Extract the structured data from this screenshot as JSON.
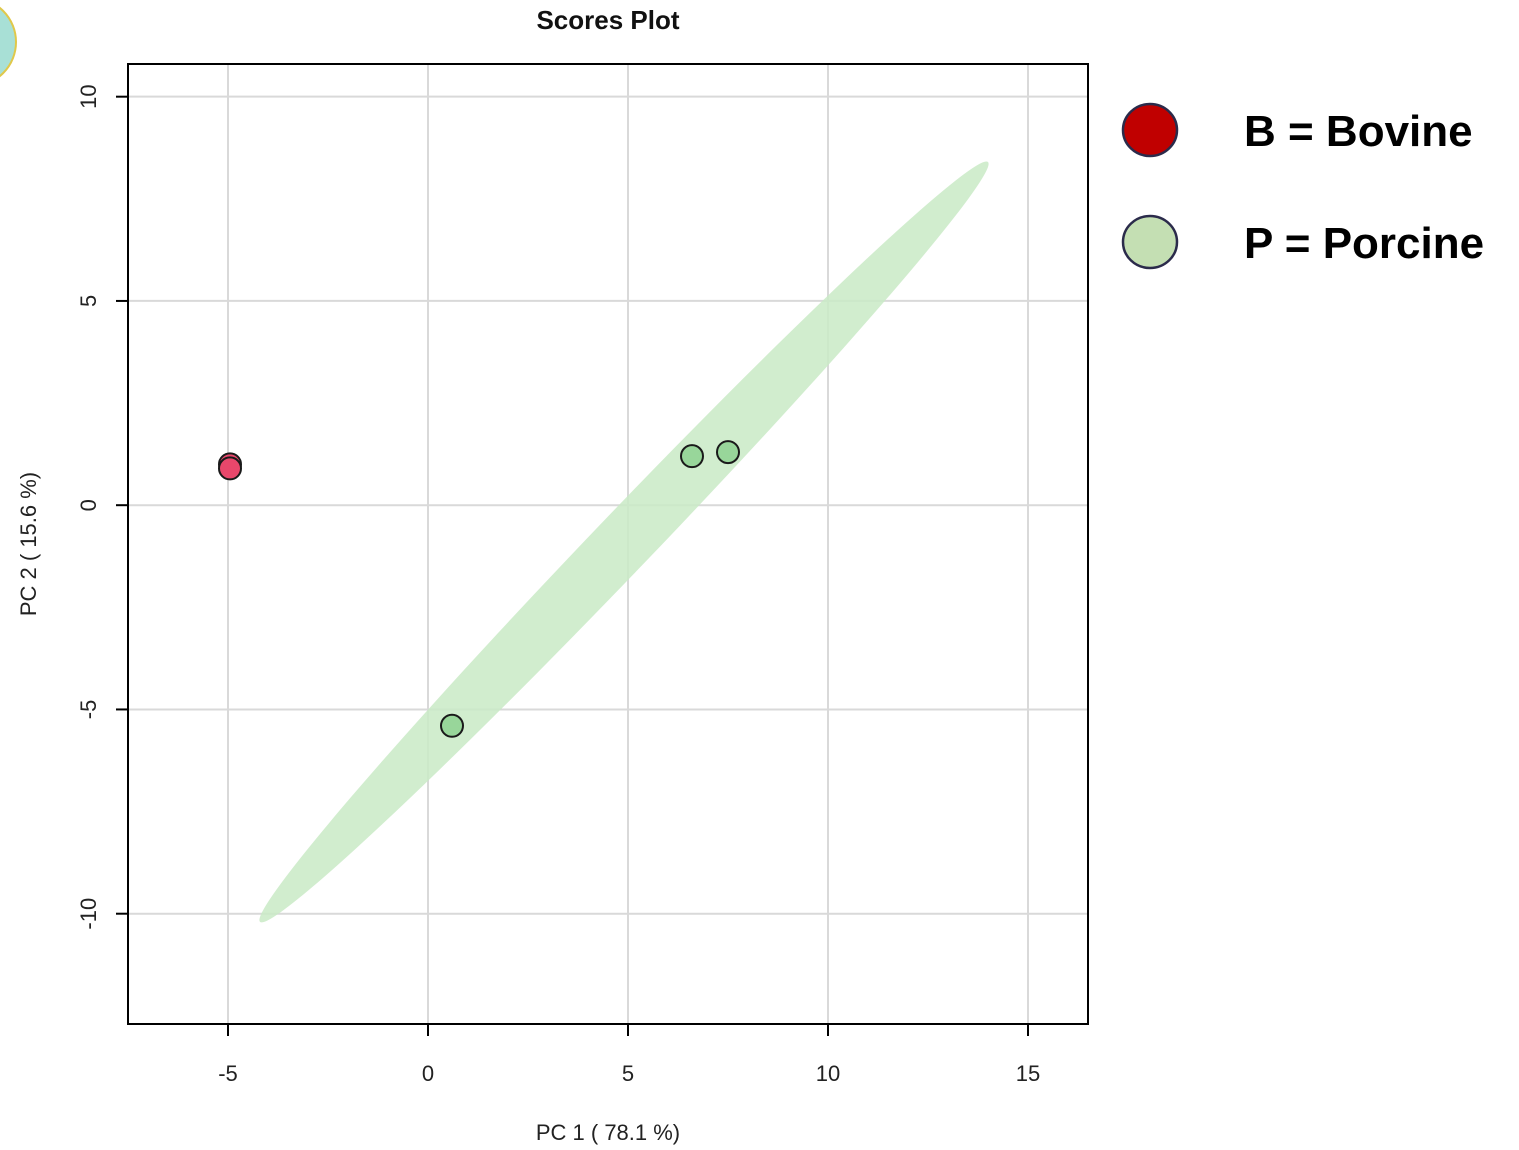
{
  "chart_data": {
    "type": "scatter",
    "title": "Scores Plot",
    "xlabel": "PC 1 ( 78.1 %)",
    "ylabel": "PC 2 ( 15.6 %)",
    "xlim": [
      -7.5,
      16.5
    ],
    "ylim": [
      -12.7,
      10.8
    ],
    "xticks": [
      -5,
      0,
      5,
      10,
      15
    ],
    "yticks": [
      -10,
      -5,
      0,
      5,
      10
    ],
    "xtick_labels": [
      "-5",
      "0",
      "5",
      "10",
      "15"
    ],
    "ytick_labels": [
      "-10",
      "-5",
      "0",
      "5",
      "10"
    ],
    "grid": true,
    "series": [
      {
        "name": "B = Bovine",
        "marker_color": "#e8476b",
        "legend_color": "#c00000",
        "points": [
          {
            "x": -4.95,
            "y": 1.0
          },
          {
            "x": -4.95,
            "y": 0.9
          }
        ]
      },
      {
        "name": "P = Porcine",
        "marker_color": "#98d69a",
        "legend_color": "#c4dfb3",
        "points": [
          {
            "x": 0.6,
            "y": -5.4
          },
          {
            "x": 6.6,
            "y": 1.2
          },
          {
            "x": 7.5,
            "y": 1.3
          }
        ],
        "ellipse": {
          "end_a": [
            -4.2,
            -10.2
          ],
          "end_b": [
            14.0,
            8.4
          ],
          "half_width": 0.55,
          "fill": "#c9eac6"
        }
      }
    ],
    "legend_position": "right"
  },
  "colors": {
    "grid": "#d9d9d9",
    "axis": "#000000",
    "point_stroke": "#1a1a1a",
    "legend_stroke": "#2b2b4b"
  },
  "decorations": {
    "corner_circle_icon": "partial-teal-circle-icon"
  }
}
